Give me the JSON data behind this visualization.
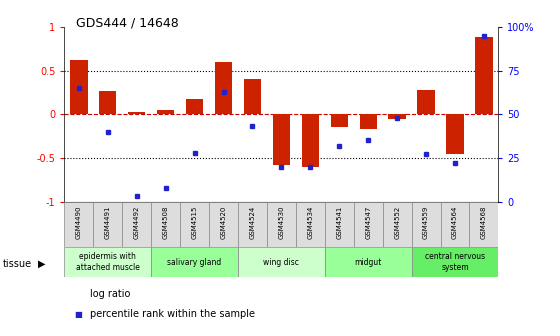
{
  "title": "GDS444 / 14648",
  "samples": [
    "GSM4490",
    "GSM4491",
    "GSM4492",
    "GSM4508",
    "GSM4515",
    "GSM4520",
    "GSM4524",
    "GSM4530",
    "GSM4534",
    "GSM4541",
    "GSM4547",
    "GSM4552",
    "GSM4559",
    "GSM4564",
    "GSM4568"
  ],
  "log_ratio": [
    0.62,
    0.27,
    0.03,
    0.05,
    0.18,
    0.6,
    0.4,
    -0.58,
    -0.6,
    -0.15,
    -0.17,
    -0.05,
    0.28,
    -0.45,
    0.88
  ],
  "percentile": [
    65,
    40,
    3,
    8,
    28,
    63,
    43,
    20,
    20,
    32,
    35,
    48,
    27,
    22,
    95
  ],
  "tissue_groups": [
    {
      "label": "epidermis with\nattached muscle",
      "start": 0,
      "end": 3,
      "color": "#ccffcc"
    },
    {
      "label": "salivary gland",
      "start": 3,
      "end": 6,
      "color": "#99ff99"
    },
    {
      "label": "wing disc",
      "start": 6,
      "end": 9,
      "color": "#ccffcc"
    },
    {
      "label": "midgut",
      "start": 9,
      "end": 12,
      "color": "#99ff99"
    },
    {
      "label": "central nervous\nsystem",
      "start": 12,
      "end": 15,
      "color": "#66ee66"
    }
  ],
  "bar_color": "#cc2200",
  "dot_color": "#2222cc",
  "zero_line_color": "#cc0000",
  "grid_color": "#000000",
  "ylim": [
    -1,
    1
  ],
  "yticks": [
    -1,
    -0.5,
    0,
    0.5,
    1
  ],
  "ytick_labels": [
    "-1",
    "-0.5",
    "0",
    "0.5",
    "1"
  ],
  "y2ticks": [
    0,
    25,
    50,
    75,
    100
  ],
  "y2tick_labels": [
    "0",
    "25",
    "50",
    "75",
    "100%"
  ]
}
